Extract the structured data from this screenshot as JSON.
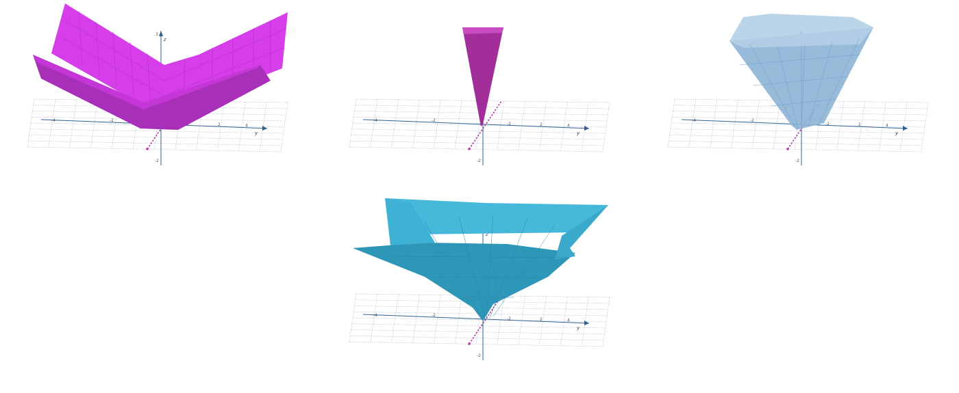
{
  "figure": {
    "axis_labels": {
      "z": "z",
      "y": "y"
    },
    "tick_labels": {
      "z_top": "3",
      "z_bottom": "-2",
      "y_ticks": [
        "-2",
        "2",
        "4"
      ],
      "x_ticks": [
        "-4",
        "-2"
      ]
    }
  },
  "panels": [
    {
      "surface_color": "#d63ee9",
      "surface_dark": "#a830b8"
    },
    {
      "surface_color": "#a22e9a",
      "surface_dark": "#7e2178"
    },
    {
      "surface_color": "#8db4d6",
      "surface_dark": "#6a94bb"
    },
    {
      "surface_color": "#46b8da",
      "surface_dark": "#2e96b7"
    }
  ],
  "colors": {
    "grid": "#9aa9c4",
    "axis": "#2f5f8f",
    "x_axis": "#b5389c"
  }
}
